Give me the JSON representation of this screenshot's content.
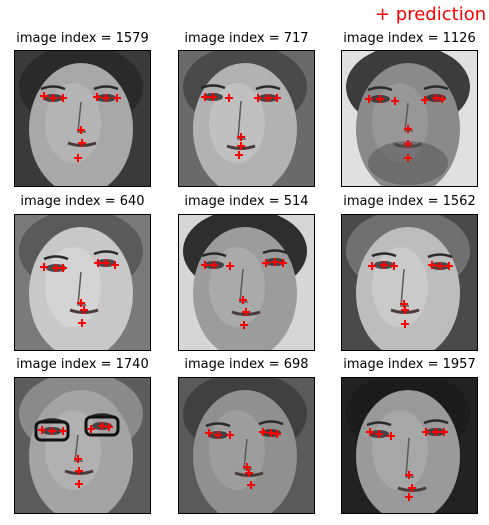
{
  "legend": {
    "label": "+ prediction",
    "color": "#ff0000"
  },
  "chart_data": {
    "type": "scatter",
    "panels": [
      {
        "title": "image index = 1579",
        "face": "woman-neutral",
        "points": [
          [
            29,
            45
          ],
          [
            38,
            47
          ],
          [
            48,
            47
          ],
          [
            82,
            46
          ],
          [
            91,
            47
          ],
          [
            102,
            47
          ],
          [
            66,
            79
          ],
          [
            67,
            92
          ],
          [
            63,
            107
          ]
        ]
      },
      {
        "title": "image index = 717",
        "face": "woman-smile",
        "points": [
          [
            26,
            46
          ],
          [
            34,
            46
          ],
          [
            50,
            47
          ],
          [
            79,
            47
          ],
          [
            89,
            47
          ],
          [
            98,
            47
          ],
          [
            62,
            86
          ],
          [
            62,
            95
          ],
          [
            60,
            104
          ]
        ]
      },
      {
        "title": "image index = 1126",
        "face": "man-beard",
        "points": [
          [
            27,
            48
          ],
          [
            38,
            48
          ],
          [
            53,
            50
          ],
          [
            83,
            49
          ],
          [
            94,
            47
          ],
          [
            100,
            48
          ],
          [
            66,
            78
          ],
          [
            66,
            93
          ],
          [
            66,
            107
          ]
        ]
      },
      {
        "title": "image index = 640",
        "face": "woman-tilted",
        "points": [
          [
            29,
            52
          ],
          [
            41,
            53
          ],
          [
            48,
            53
          ],
          [
            83,
            48
          ],
          [
            91,
            48
          ],
          [
            100,
            50
          ],
          [
            66,
            88
          ],
          [
            69,
            95
          ],
          [
            67,
            108
          ]
        ]
      },
      {
        "title": "image index = 514",
        "face": "man-short-hair",
        "points": [
          [
            26,
            50
          ],
          [
            35,
            50
          ],
          [
            51,
            51
          ],
          [
            87,
            48
          ],
          [
            96,
            47
          ],
          [
            104,
            48
          ],
          [
            64,
            85
          ],
          [
            67,
            97
          ],
          [
            65,
            110
          ]
        ]
      },
      {
        "title": "image index = 1562",
        "face": "woman-grimace",
        "points": [
          [
            30,
            51
          ],
          [
            42,
            50
          ],
          [
            52,
            51
          ],
          [
            90,
            50
          ],
          [
            98,
            51
          ],
          [
            107,
            51
          ],
          [
            62,
            89
          ],
          [
            63,
            95
          ],
          [
            63,
            109
          ]
        ]
      },
      {
        "title": "image index = 1740",
        "face": "woman-glasses",
        "points": [
          [
            27,
            52
          ],
          [
            37,
            53
          ],
          [
            48,
            53
          ],
          [
            76,
            51
          ],
          [
            87,
            48
          ],
          [
            94,
            49
          ],
          [
            63,
            81
          ],
          [
            64,
            93
          ],
          [
            64,
            106
          ]
        ]
      },
      {
        "title": "image index = 698",
        "face": "man-blurred",
        "points": [
          [
            30,
            55
          ],
          [
            39,
            57
          ],
          [
            51,
            57
          ],
          [
            84,
            54
          ],
          [
            92,
            55
          ],
          [
            98,
            56
          ],
          [
            68,
            89
          ],
          [
            70,
            95
          ],
          [
            72,
            107
          ]
        ]
      },
      {
        "title": "image index = 1957",
        "face": "man-frown",
        "points": [
          [
            28,
            54
          ],
          [
            37,
            56
          ],
          [
            49,
            58
          ],
          [
            84,
            54
          ],
          [
            94,
            54
          ],
          [
            102,
            54
          ],
          [
            67,
            97
          ],
          [
            70,
            110
          ],
          [
            67,
            119
          ]
        ]
      }
    ]
  }
}
